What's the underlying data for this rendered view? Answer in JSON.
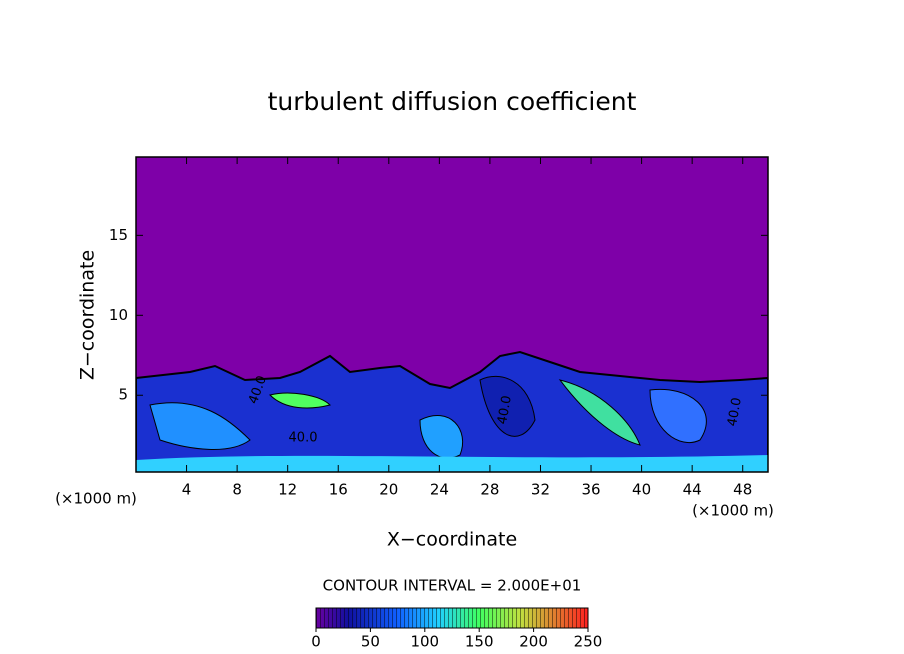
{
  "chart_data": {
    "type": "contour",
    "title": "turbulent diffusion coefficient",
    "xlabel": "X−coordinate",
    "ylabel": "Z−coordinate",
    "x_unit_left": "(×1000 m)",
    "x_unit_right": "(×1000 m)",
    "xlim": [
      0,
      50
    ],
    "xticks": [
      4,
      8,
      12,
      16,
      20,
      24,
      28,
      32,
      36,
      40,
      44,
      48
    ],
    "ylim": [
      0.2,
      19.9
    ],
    "yticks": [
      5,
      10,
      15
    ],
    "contour_interval": "CONTOUR INTERVAL = 2.000E+01",
    "contour_labels": [
      "40.0",
      "40.0",
      "40.0",
      "40.0"
    ],
    "colorbar": {
      "lim": [
        0,
        250
      ],
      "ticks": [
        0,
        50,
        100,
        150,
        200,
        250
      ]
    }
  }
}
